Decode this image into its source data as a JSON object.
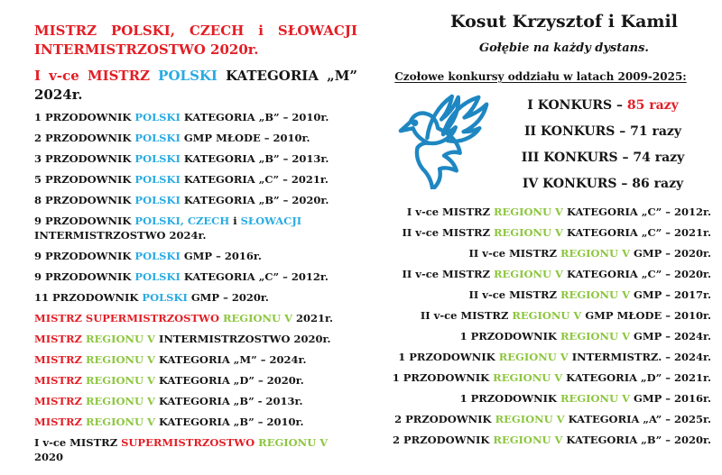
{
  "colors": {
    "red": "#e31e25",
    "cyan": "#29abe2",
    "green": "#8dc63f",
    "black": "#161616",
    "dove_blue": "#1e87c2"
  },
  "left": {
    "heading1": [
      [
        "MISTRZ POLSKI, CZECH i SŁOWACJI INTERMISTRZOSTWO 2020r.",
        "red"
      ]
    ],
    "heading2": [
      [
        "I v-ce MISTRZ ",
        "red"
      ],
      [
        "POLSKI",
        "cyan"
      ],
      [
        " KATEGORIA „M” 2024r.",
        "black"
      ]
    ],
    "achievements": [
      [
        [
          "1 PRZODOWNIK ",
          "black"
        ],
        [
          "POLSKI",
          "cyan"
        ],
        [
          " KATEGORIA „B” – 2010r.",
          "black"
        ]
      ],
      [
        [
          "2 PRZODOWNIK ",
          "black"
        ],
        [
          "POLSKI",
          "cyan"
        ],
        [
          " GMP MŁODE – 2010r.",
          "black"
        ]
      ],
      [
        [
          "3 PRZODOWNIK ",
          "black"
        ],
        [
          "POLSKI",
          "cyan"
        ],
        [
          " KATEGORIA „B” – 2013r.",
          "black"
        ]
      ],
      [
        [
          "5 PRZODOWNIK ",
          "black"
        ],
        [
          "POLSKI",
          "cyan"
        ],
        [
          " KATEGORIA „C” – 2021r.",
          "black"
        ]
      ],
      [
        [
          "8 PRZODOWNIK ",
          "black"
        ],
        [
          "POLSKI",
          "cyan"
        ],
        [
          " KATEGORIA „B” – 2020r.",
          "black"
        ]
      ],
      [
        [
          "9 PRZODOWNIK ",
          "black"
        ],
        [
          "POLSKI, CZECH",
          "cyan"
        ],
        [
          " i ",
          "black"
        ],
        [
          "SŁOWACJI",
          "cyan"
        ],
        [
          " INTERMISTRZOSTWO 2024r.",
          "black"
        ]
      ],
      [
        [
          "9 PRZODOWNIK ",
          "black"
        ],
        [
          "POLSKI",
          "cyan"
        ],
        [
          " GMP – 2016r.",
          "black"
        ]
      ],
      [
        [
          "9 PRZODOWNIK ",
          "black"
        ],
        [
          "POLSKI",
          "cyan"
        ],
        [
          " KATEGORIA „C” – 2012r.",
          "black"
        ]
      ],
      [
        [
          "11 PRZODOWNIK ",
          "black"
        ],
        [
          "POLSKI",
          "cyan"
        ],
        [
          " GMP – 2020r.",
          "black"
        ]
      ],
      [
        [
          "MISTRZ SUPERMISTRZOSTWO ",
          "red"
        ],
        [
          "REGIONU V",
          "green"
        ],
        [
          " 2021r.",
          "black"
        ]
      ],
      [
        [
          "MISTRZ ",
          "red"
        ],
        [
          "REGIONU V",
          "green"
        ],
        [
          " INTERMISTRZOSTWO 2020r.",
          "black"
        ]
      ],
      [
        [
          "MISTRZ ",
          "red"
        ],
        [
          "REGIONU V",
          "green"
        ],
        [
          " KATEGORIA „M” – 2024r.",
          "black"
        ]
      ],
      [
        [
          "MISTRZ ",
          "red"
        ],
        [
          "REGIONU V",
          "green"
        ],
        [
          " KATEGORIA „D” – 2020r.",
          "black"
        ]
      ],
      [
        [
          "MISTRZ ",
          "red"
        ],
        [
          "REGIONU V",
          "green"
        ],
        [
          " KATEGORIA „B” - 2013r.",
          "black"
        ]
      ],
      [
        [
          "MISTRZ ",
          "red"
        ],
        [
          "REGIONU V",
          "green"
        ],
        [
          " KATEGORIA „B” – 2010r.",
          "black"
        ]
      ],
      [
        [
          "I v-ce MISTRZ ",
          "black"
        ],
        [
          "SUPERMISTRZOSTWO ",
          "red"
        ],
        [
          "REGIONU V",
          "green"
        ],
        [
          " 2020",
          "black"
        ]
      ]
    ]
  },
  "right": {
    "title": "Kosut Krzysztof i Kamil",
    "subtitle": "Gołębie na każdy dystans.",
    "section_heading": "Czołowe konkursy oddziału w latach 2009-2025:",
    "konkurs_results": [
      [
        [
          "I KONKURS – ",
          "black"
        ],
        [
          "85 razy",
          "red"
        ]
      ],
      [
        [
          "II KONKURS – 71 razy",
          "black"
        ]
      ],
      [
        [
          "III KONKURS – 74 razy",
          "black"
        ]
      ],
      [
        [
          "IV KONKURS – 86 razy",
          "black"
        ]
      ]
    ],
    "achievements": [
      [
        [
          "I v-ce MISTRZ ",
          "black"
        ],
        [
          "REGIONU V",
          "green"
        ],
        [
          " KATEGORIA „C” – 2012r.",
          "black"
        ]
      ],
      [
        [
          "II v-ce MISTRZ ",
          "black"
        ],
        [
          "REGIONU V",
          "green"
        ],
        [
          " KATEGORIA „C” – 2021r.",
          "black"
        ]
      ],
      [
        [
          "II v-ce MISTRZ ",
          "black"
        ],
        [
          "REGIONU V",
          "green"
        ],
        [
          " GMP – 2020r.",
          "black"
        ]
      ],
      [
        [
          "II v-ce MISTRZ ",
          "black"
        ],
        [
          "REGIONU V",
          "green"
        ],
        [
          " KATEGORIA „C” – 2020r.",
          "black"
        ]
      ],
      [
        [
          "II v-ce MISTRZ ",
          "black"
        ],
        [
          "REGIONU V",
          "green"
        ],
        [
          " GMP – 2017r.",
          "black"
        ]
      ],
      [
        [
          "II v-ce MISTRZ ",
          "black"
        ],
        [
          "REGIONU V",
          "green"
        ],
        [
          " GMP MŁODE – 2010r.",
          "black"
        ]
      ],
      [
        [
          "1 PRZODOWNIK ",
          "black"
        ],
        [
          "REGIONU V",
          "green"
        ],
        [
          " GMP – 2024r.",
          "black"
        ]
      ],
      [
        [
          "1 PRZODOWNIK ",
          "black"
        ],
        [
          "REGIONU V",
          "green"
        ],
        [
          " INTERMISTRZ. – 2024r.",
          "black"
        ]
      ],
      [
        [
          "1 PRZODOWNIK ",
          "black"
        ],
        [
          "REGIONU V",
          "green"
        ],
        [
          " KATEGORIA „D” – 2021r.",
          "black"
        ]
      ],
      [
        [
          "1 PRZODOWNIK ",
          "black"
        ],
        [
          "REGIONU V",
          "green"
        ],
        [
          " GMP – 2016r.",
          "black"
        ]
      ],
      [
        [
          "2 PRZODOWNIK ",
          "black"
        ],
        [
          "REGIONU V",
          "green"
        ],
        [
          " KATEGORIA „A” – 2025r.",
          "black"
        ]
      ],
      [
        [
          "2 PRZODOWNIK ",
          "black"
        ],
        [
          "REGIONU V",
          "green"
        ],
        [
          " KATEGORIA „B” – 2020r.",
          "black"
        ]
      ]
    ]
  }
}
